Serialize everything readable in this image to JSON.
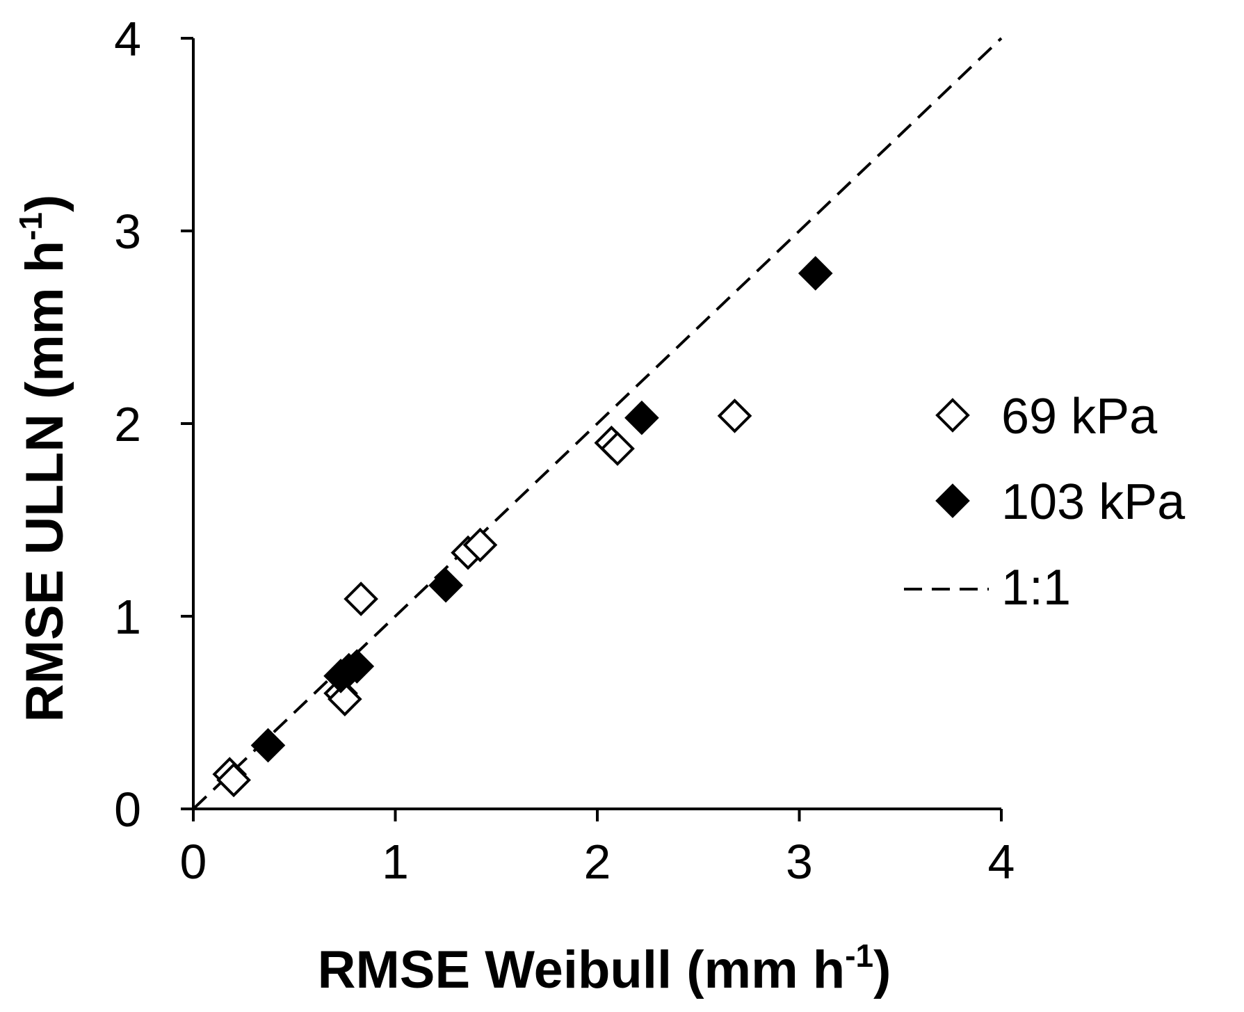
{
  "chart_data": {
    "type": "scatter",
    "title": "",
    "xlabel": {
      "text": "RMSE Weibull (mm h",
      "sup": "-1",
      "close": ")"
    },
    "ylabel": {
      "text": "RMSE ULLN (mm h",
      "sup": "-1",
      "close": ")"
    },
    "xlim": [
      0,
      4
    ],
    "ylim": [
      0,
      4
    ],
    "xticks": [
      "0",
      "1",
      "2",
      "3",
      "4"
    ],
    "yticks": [
      "0",
      "1",
      "2",
      "3",
      "4"
    ],
    "grid": false,
    "legend_position": "right",
    "series": [
      {
        "name": "69 kPa",
        "marker": "diamond-open",
        "points": [
          {
            "x": 0.18,
            "y": 0.18
          },
          {
            "x": 0.2,
            "y": 0.15
          },
          {
            "x": 0.73,
            "y": 0.6
          },
          {
            "x": 0.75,
            "y": 0.57
          },
          {
            "x": 0.83,
            "y": 1.09
          },
          {
            "x": 1.36,
            "y": 1.33
          },
          {
            "x": 1.42,
            "y": 1.37
          },
          {
            "x": 2.07,
            "y": 1.9
          },
          {
            "x": 2.1,
            "y": 1.87
          },
          {
            "x": 2.68,
            "y": 2.04
          }
        ]
      },
      {
        "name": "103 kPa",
        "marker": "diamond-filled",
        "points": [
          {
            "x": 0.37,
            "y": 0.33
          },
          {
            "x": 0.73,
            "y": 0.69
          },
          {
            "x": 0.77,
            "y": 0.72
          },
          {
            "x": 0.81,
            "y": 0.74
          },
          {
            "x": 1.25,
            "y": 1.16
          },
          {
            "x": 2.22,
            "y": 2.03
          },
          {
            "x": 3.08,
            "y": 2.78
          }
        ]
      },
      {
        "name": "1:1",
        "line": "dashed",
        "points": [
          {
            "x": 0,
            "y": 0
          },
          {
            "x": 4,
            "y": 4
          }
        ]
      }
    ]
  }
}
